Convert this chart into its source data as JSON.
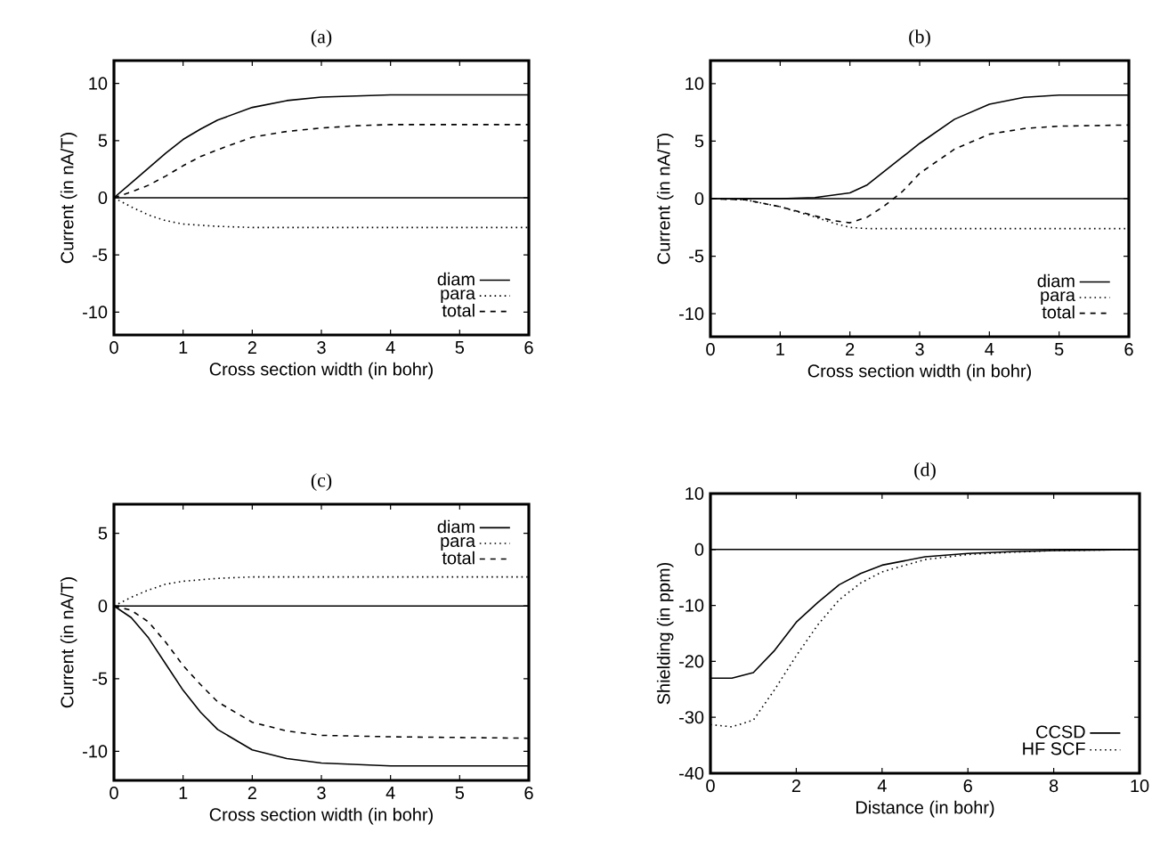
{
  "chart_data": [
    {
      "type": "line",
      "title": "(a)",
      "xlabel": "Cross section width (in bohr)",
      "ylabel": "Current (in nA/T)",
      "xlim": [
        0,
        6
      ],
      "ylim": [
        -12,
        12
      ],
      "xticks": [
        0,
        1,
        2,
        3,
        4,
        5,
        6
      ],
      "yticks": [
        -10,
        -5,
        0,
        5,
        10
      ],
      "legend": "bottom right",
      "grid": false,
      "marker": "none",
      "ref_lines": [
        {
          "axis": "y",
          "value": 0,
          "color": "#000000",
          "line_style": "solid"
        }
      ],
      "series": [
        {
          "name": "diam",
          "color": "#000000",
          "line_style": "solid",
          "x": [
            0,
            0.25,
            0.5,
            0.75,
            1,
            1.25,
            1.5,
            2,
            2.5,
            3,
            3.5,
            4,
            5,
            6
          ],
          "values": [
            0,
            1.3,
            2.6,
            3.9,
            5.1,
            6.0,
            6.8,
            7.9,
            8.5,
            8.8,
            8.9,
            9.0,
            9.0,
            9.0
          ]
        },
        {
          "name": "para",
          "color": "#000000",
          "line_style": "dotted",
          "x": [
            0,
            0.25,
            0.5,
            0.75,
            1,
            1.5,
            2,
            3,
            6
          ],
          "values": [
            0,
            -0.8,
            -1.5,
            -2.0,
            -2.3,
            -2.5,
            -2.6,
            -2.6,
            -2.6
          ]
        },
        {
          "name": "total",
          "color": "#000000",
          "line_style": "dashed",
          "x": [
            0,
            0.25,
            0.5,
            0.75,
            1,
            1.25,
            1.5,
            2,
            2.5,
            3,
            3.5,
            4,
            5,
            6
          ],
          "values": [
            0,
            0.5,
            1.1,
            1.9,
            2.8,
            3.6,
            4.2,
            5.3,
            5.8,
            6.1,
            6.3,
            6.4,
            6.4,
            6.4
          ]
        }
      ]
    },
    {
      "type": "line",
      "title": "(b)",
      "xlabel": "Cross section width (in bohr)",
      "ylabel": "Current (in nA/T)",
      "xlim": [
        0,
        6
      ],
      "ylim": [
        -12,
        12
      ],
      "xticks": [
        0,
        1,
        2,
        3,
        4,
        5,
        6
      ],
      "yticks": [
        -10,
        -5,
        0,
        5,
        10
      ],
      "legend": "bottom right",
      "grid": false,
      "marker": "none",
      "ref_lines": [
        {
          "axis": "y",
          "value": 0,
          "color": "#000000",
          "line_style": "solid"
        }
      ],
      "series": [
        {
          "name": "diam",
          "color": "#000000",
          "line_style": "solid",
          "x": [
            0,
            1,
            1.5,
            2,
            2.25,
            2.5,
            2.75,
            3,
            3.5,
            4,
            4.5,
            5,
            6
          ],
          "values": [
            0,
            0,
            0.1,
            0.5,
            1.2,
            2.4,
            3.6,
            4.8,
            6.9,
            8.2,
            8.8,
            9.0,
            9.0
          ]
        },
        {
          "name": "para",
          "color": "#000000",
          "line_style": "dotted",
          "x": [
            0,
            0.5,
            1,
            1.5,
            1.75,
            2,
            2.25,
            3,
            6
          ],
          "values": [
            0,
            -0.1,
            -0.7,
            -1.6,
            -2.1,
            -2.5,
            -2.6,
            -2.6,
            -2.6
          ]
        },
        {
          "name": "total",
          "color": "#000000",
          "line_style": "dashed",
          "x": [
            0,
            0.5,
            1,
            1.5,
            1.75,
            2,
            2.25,
            2.5,
            2.75,
            3,
            3.5,
            4,
            4.5,
            5,
            6
          ],
          "values": [
            0,
            -0.1,
            -0.7,
            -1.5,
            -1.9,
            -2.1,
            -1.6,
            -0.6,
            0.6,
            2.2,
            4.3,
            5.6,
            6.1,
            6.3,
            6.4
          ]
        }
      ]
    },
    {
      "type": "line",
      "title": "(c)",
      "xlabel": "Cross section width (in bohr)",
      "ylabel": "Current (in nA/T)",
      "xlim": [
        0,
        6
      ],
      "ylim": [
        -12,
        7
      ],
      "xticks": [
        0,
        1,
        2,
        3,
        4,
        5,
        6
      ],
      "yticks": [
        -10,
        -5,
        0,
        5
      ],
      "legend": "top right",
      "grid": false,
      "marker": "none",
      "ref_lines": [
        {
          "axis": "y",
          "value": 0,
          "color": "#000000",
          "line_style": "solid"
        }
      ],
      "series": [
        {
          "name": "diam",
          "color": "#000000",
          "line_style": "solid",
          "x": [
            0,
            0.25,
            0.5,
            0.75,
            1,
            1.25,
            1.5,
            2,
            2.5,
            3,
            4,
            6
          ],
          "values": [
            0,
            -0.8,
            -2.2,
            -4.0,
            -5.8,
            -7.3,
            -8.5,
            -9.9,
            -10.5,
            -10.8,
            -11.0,
            -11.0
          ]
        },
        {
          "name": "para",
          "color": "#000000",
          "line_style": "dotted",
          "x": [
            0,
            0.25,
            0.5,
            0.75,
            1,
            1.5,
            2,
            3,
            6
          ],
          "values": [
            0,
            0.6,
            1.1,
            1.5,
            1.7,
            1.9,
            2.0,
            2.0,
            2.0
          ]
        },
        {
          "name": "total",
          "color": "#000000",
          "line_style": "dashed",
          "x": [
            0,
            0.25,
            0.5,
            0.75,
            1,
            1.25,
            1.5,
            2,
            2.5,
            3,
            4,
            6
          ],
          "values": [
            0,
            -0.3,
            -1.1,
            -2.5,
            -4.1,
            -5.4,
            -6.6,
            -8.0,
            -8.6,
            -8.9,
            -9.0,
            -9.1
          ]
        }
      ]
    },
    {
      "type": "line",
      "title": "(d)",
      "xlabel": "Distance (in bohr)",
      "ylabel": "Shielding (in ppm)",
      "xlim": [
        0,
        10
      ],
      "ylim": [
        -40,
        10
      ],
      "xticks": [
        0,
        2,
        4,
        6,
        8,
        10
      ],
      "yticks": [
        -40,
        -30,
        -20,
        -10,
        0,
        10
      ],
      "legend": "bottom right",
      "grid": false,
      "marker": "none",
      "ref_lines": [
        {
          "axis": "y",
          "value": 0,
          "color": "#000000",
          "line_style": "solid"
        }
      ],
      "series": [
        {
          "name": "CCSD",
          "color": "#000000",
          "line_style": "solid",
          "x": [
            0,
            0.5,
            1,
            1.5,
            2,
            2.5,
            3,
            3.5,
            4,
            5,
            6,
            7,
            8,
            10
          ],
          "values": [
            -23,
            -23,
            -22,
            -18,
            -13,
            -9.5,
            -6.3,
            -4.3,
            -2.8,
            -1.3,
            -0.7,
            -0.4,
            -0.2,
            0
          ]
        },
        {
          "name": "HF SCF",
          "color": "#000000",
          "line_style": "dotted",
          "x": [
            0,
            0.5,
            1,
            1.5,
            2,
            2.5,
            3,
            3.5,
            4,
            5,
            6,
            7,
            8,
            10
          ],
          "values": [
            -31.3,
            -31.7,
            -30.5,
            -25,
            -19,
            -13.5,
            -9,
            -6,
            -4,
            -1.8,
            -0.9,
            -0.5,
            -0.2,
            0
          ]
        }
      ]
    }
  ]
}
